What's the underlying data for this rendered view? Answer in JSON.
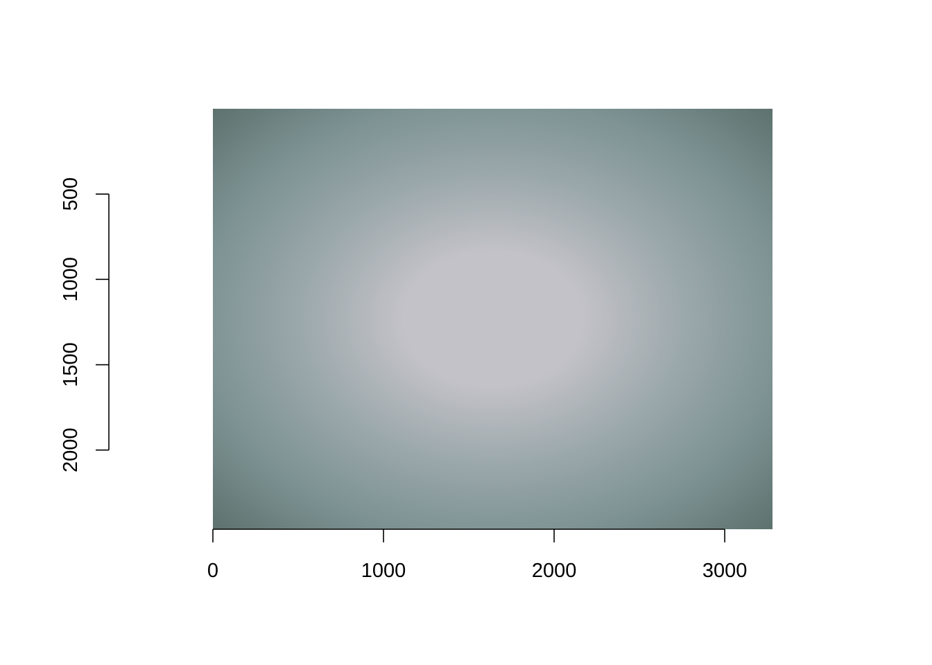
{
  "chart_data": {
    "type": "heatmap",
    "title": "",
    "xlabel": "",
    "ylabel": "",
    "xlim": [
      0,
      3280
    ],
    "ylim": [
      2464,
      0
    ],
    "x_ticks": [
      {
        "value": 0,
        "label": "0"
      },
      {
        "value": 1000,
        "label": "1000"
      },
      {
        "value": 2000,
        "label": "2000"
      },
      {
        "value": 3000,
        "label": "3000"
      }
    ],
    "y_ticks": [
      {
        "value": 500,
        "label": "500"
      },
      {
        "value": 1000,
        "label": "1000"
      },
      {
        "value": 1500,
        "label": "1500"
      },
      {
        "value": 2000,
        "label": "2000"
      }
    ],
    "image": {
      "width": 3280,
      "height": 2464,
      "center_color": "#c3c2c8",
      "mid_color": "#9ba8ab",
      "edge_color": "#7a9090",
      "corner_color": "#5b6f6b"
    },
    "grid": false,
    "legend": "none"
  }
}
